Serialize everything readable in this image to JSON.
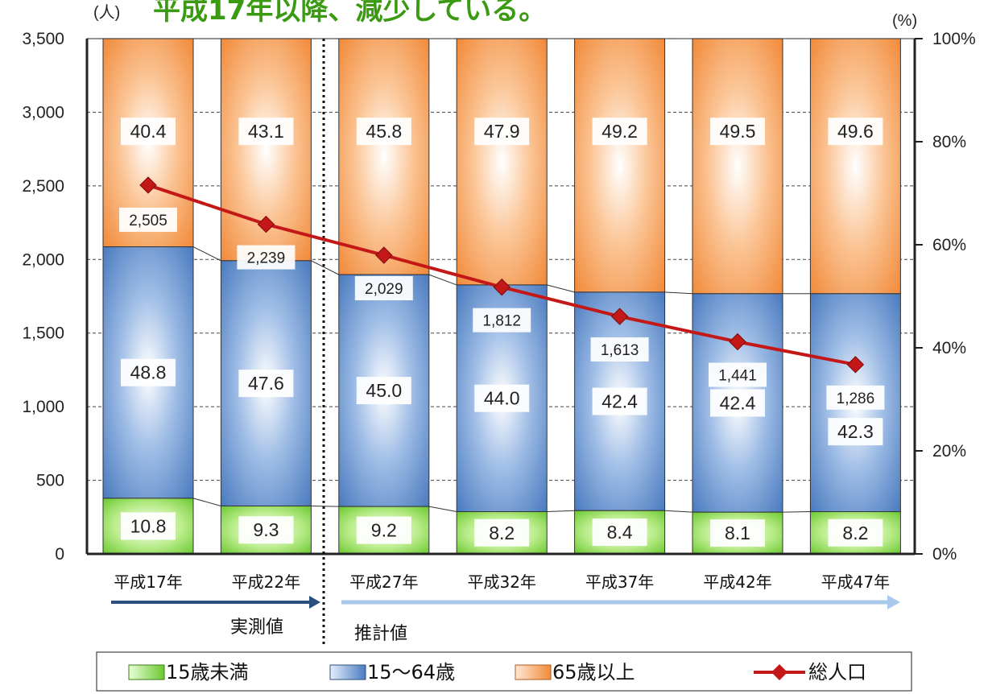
{
  "chart_data": {
    "type": "bar",
    "title": "平成17年以降、減少している。",
    "left_unit": "(人)",
    "right_unit": "(%)",
    "categories": [
      "平成17年",
      "平成22年",
      "平成27年",
      "平成32年",
      "平成37年",
      "平成42年",
      "平成47年"
    ],
    "left_ticks": [
      "0",
      "500",
      "1,000",
      "1,500",
      "2,000",
      "2,500",
      "3,000",
      "3,500"
    ],
    "right_ticks": [
      "0%",
      "20%",
      "40%",
      "60%",
      "80%",
      "100%"
    ],
    "ylim_left": [
      0,
      3500
    ],
    "ylim_right": [
      0,
      100
    ],
    "series": [
      {
        "name": "15歳未満",
        "axis": "right",
        "values": [
          10.8,
          9.3,
          9.2,
          8.2,
          8.4,
          8.1,
          8.2
        ],
        "color": "#8ad84a"
      },
      {
        "name": "15～64歳",
        "axis": "right",
        "values": [
          48.8,
          47.6,
          45.0,
          44.0,
          42.4,
          42.4,
          42.3
        ],
        "color": "#4e7fc0"
      },
      {
        "name": "65歳以上",
        "axis": "right",
        "values": [
          40.4,
          43.1,
          45.8,
          47.9,
          49.2,
          49.5,
          49.6
        ],
        "color": "#f4974a"
      },
      {
        "name": "総人口",
        "axis": "left",
        "type": "line",
        "values": [
          2505,
          2239,
          2029,
          1812,
          1613,
          1441,
          1286
        ],
        "color": "#c41818"
      }
    ],
    "value_labels": {
      "under15": [
        "10.8",
        "9.3",
        "9.2",
        "8.2",
        "8.4",
        "8.1",
        "8.2"
      ],
      "working": [
        "48.8",
        "47.6",
        "45.0",
        "44.0",
        "42.4",
        "42.4",
        "42.3"
      ],
      "elderly": [
        "40.4",
        "43.1",
        "45.8",
        "47.9",
        "49.2",
        "49.5",
        "49.6"
      ],
      "total": [
        "2,505",
        "2,239",
        "2,029",
        "1,812",
        "1,613",
        "1,441",
        "1,286"
      ]
    },
    "phases": {
      "actual": "実測値",
      "estimate": "推計値"
    },
    "legend": {
      "under15": "15歳未満",
      "working": "15～64歳",
      "elderly": "65歳以上",
      "total": "総人口"
    }
  }
}
